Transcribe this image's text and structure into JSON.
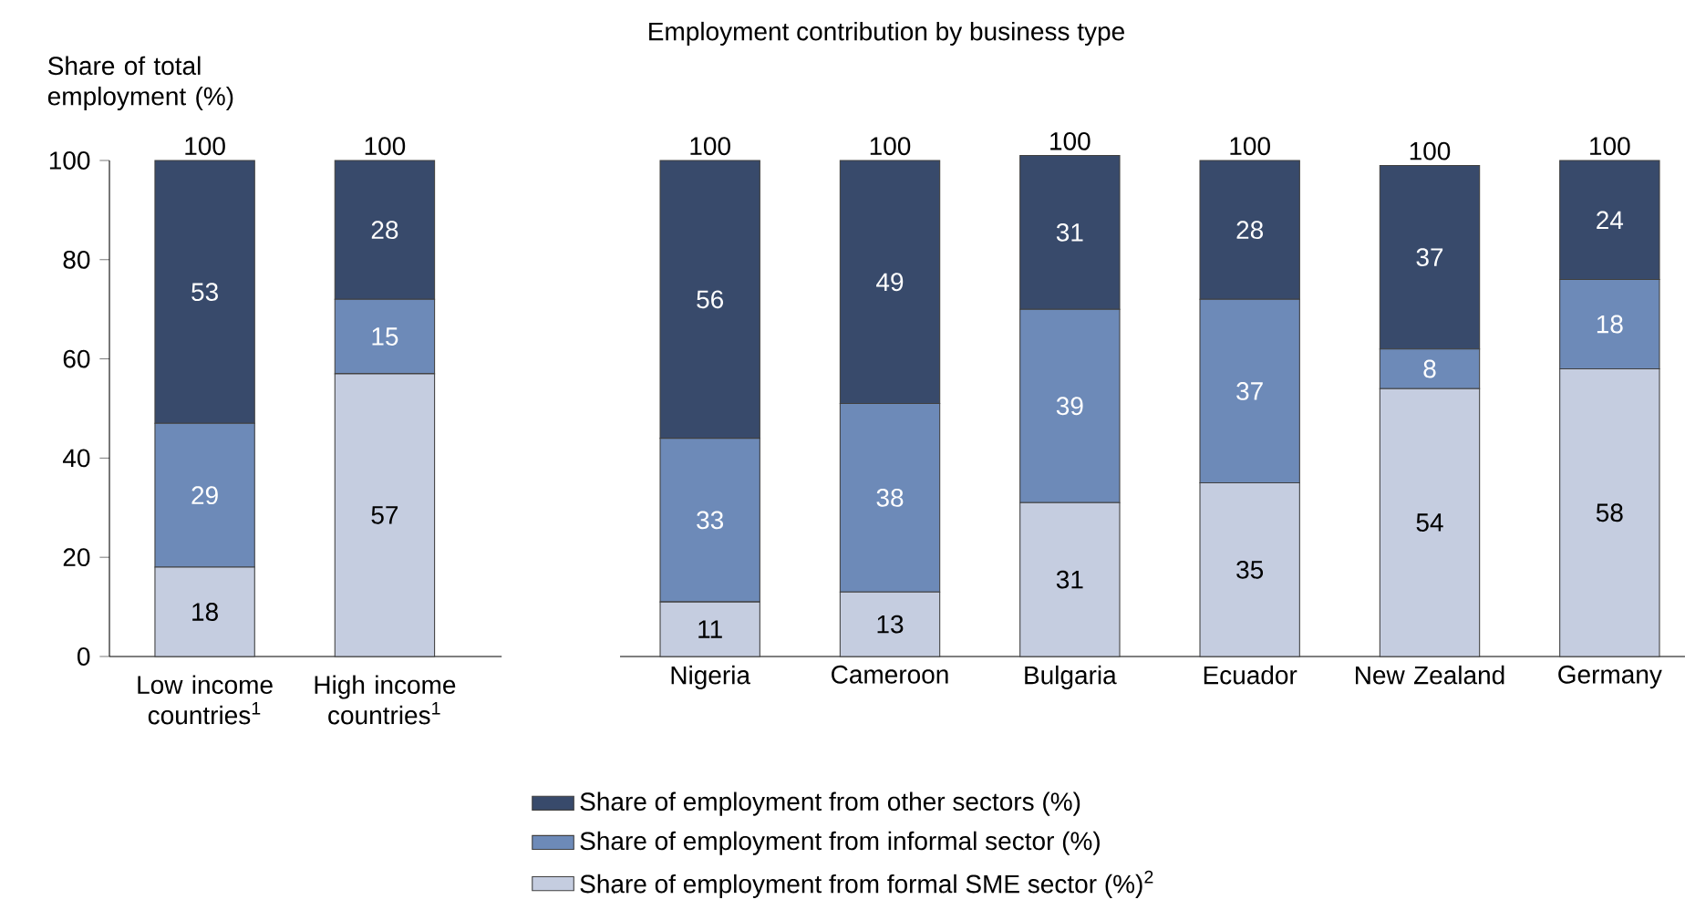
{
  "chart_data": [
    {
      "type": "bar",
      "stacked": true,
      "ylabel": "Share of total employment (%)",
      "categories": [
        "Low income countries$^{1}$",
        "High income countries$^{1}$"
      ],
      "ylim": [
        0,
        100
      ],
      "yticks": [
        0,
        20,
        40,
        60,
        80,
        100
      ],
      "data_labels": true,
      "totals": [
        "100",
        "100"
      ],
      "legend": false,
      "series": [
        {
          "color": "#c5cde0",
          "values": [
            18,
            57
          ]
        },
        {
          "color": "#6d8ab8",
          "values": [
            29,
            15
          ]
        },
        {
          "color": "#384a6b",
          "values": [
            53,
            28
          ]
        }
      ]
    },
    {
      "type": "bar",
      "stacked": true,
      "title": "Employment contribution by business type",
      "categories": [
        "Nigeria",
        "Cameroon",
        "Bulgaria",
        "Ecuador",
        "New Zealand",
        "Germany"
      ],
      "tick_labels": "x",
      "data_labels": true,
      "totals": [
        "100",
        "100",
        "100",
        "100",
        "100",
        "100"
      ],
      "legend": "bottom",
      "series": [
        {
          "name": "Share of employment from formal SME sector (%)$^{2}$",
          "color": "#c5cde0",
          "values": [
            11,
            13,
            31,
            35,
            54,
            58
          ]
        },
        {
          "name": "Share of employment from informal sector (%)",
          "color": "#6d8ab8",
          "values": [
            33,
            38,
            39,
            37,
            8,
            18
          ]
        },
        {
          "name": "Share of employment from other sectors (%)",
          "color": "#384a6b",
          "values": [
            56,
            49,
            31,
            28,
            37,
            24
          ]
        }
      ]
    }
  ]
}
